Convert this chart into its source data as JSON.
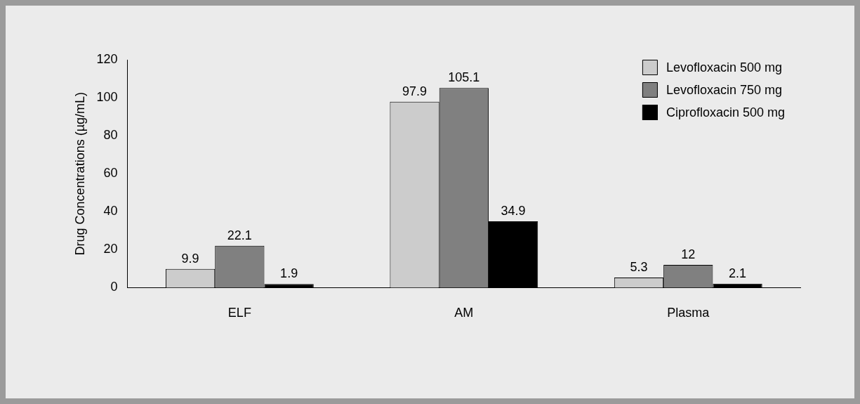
{
  "chart_data": {
    "type": "bar",
    "ylabel": "Drug Concentrations (µg/mL)",
    "categories": [
      "ELF",
      "AM",
      "Plasma"
    ],
    "series": [
      {
        "name": "Levofloxacin 500 mg",
        "color": "#cccccc",
        "values": [
          9.9,
          97.9,
          5.3
        ]
      },
      {
        "name": "Levofloxacin 750 mg",
        "color": "#808080",
        "values": [
          22.1,
          105.1,
          12
        ]
      },
      {
        "name": "Ciprofloxacin 500 mg",
        "color": "#000000",
        "values": [
          1.9,
          34.9,
          2.1
        ]
      }
    ],
    "ylim": [
      0,
      120
    ],
    "yticks": [
      0,
      20,
      40,
      60,
      80,
      100,
      120
    ],
    "grid": false,
    "legend": "top right",
    "data_labels": true
  }
}
